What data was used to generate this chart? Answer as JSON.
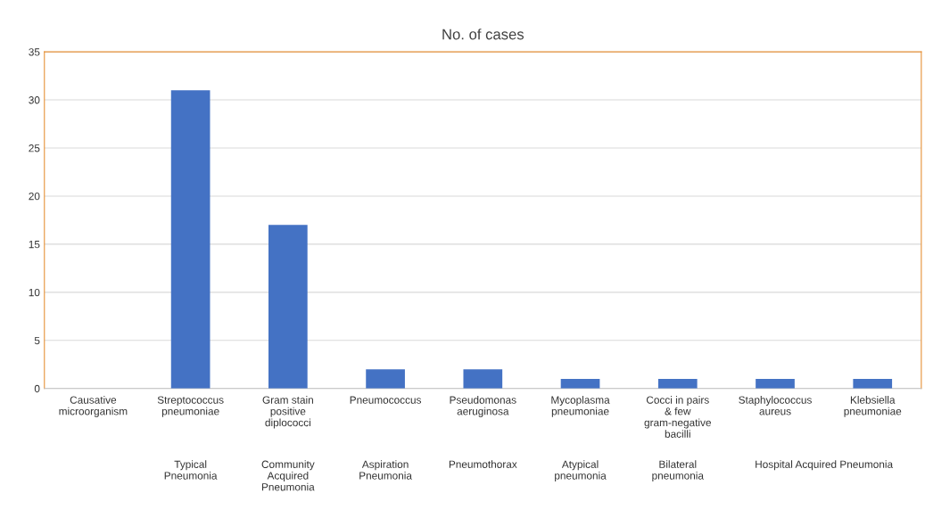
{
  "chart_data": {
    "type": "bar",
    "title": "No. of cases",
    "categories": [
      "Causative microorganism",
      "Streptococcus pneumoniae",
      "Gram stain positive diplococci",
      "Pneumococcus",
      "Pseudomonas aeruginosa",
      "Mycoplasma pneumoniae",
      "Cocci in pairs & few gram-negative bacilli",
      "Staphylococcus aureus",
      "Klebsiella pneumoniae"
    ],
    "values": [
      null,
      31,
      17,
      2,
      2,
      1,
      1,
      1,
      1
    ],
    "color": "#4472c4",
    "ylim": [
      0,
      35
    ],
    "yticks": [
      0,
      5,
      10,
      15,
      20,
      25,
      30,
      35
    ],
    "grid": "y",
    "legend": false,
    "annotations": [
      "Typical Pneumonia",
      "Community Acquired Pneumonia",
      "Aspiration Pneumonia",
      "Pneumothorax",
      "Atypical pneumonia",
      "Bilateral pneumonia",
      "Hospital Acquired Pneumonia"
    ]
  }
}
